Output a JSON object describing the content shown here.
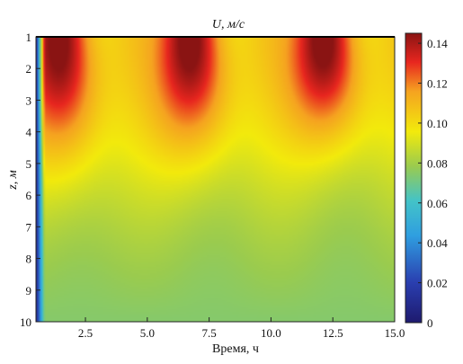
{
  "chart_data": {
    "type": "heatmap",
    "title": "U, м/с",
    "xlabel": "Время, ч",
    "ylabel": "z, м",
    "xlim": [
      0.5,
      15.0
    ],
    "ylim": [
      1,
      10
    ],
    "y_inverted": true,
    "x_ticks": [
      "2.5",
      "5.0",
      "7.5",
      "10.0",
      "12.5",
      "15.0"
    ],
    "y_ticks": [
      "1",
      "2",
      "3",
      "4",
      "5",
      "6",
      "7",
      "8",
      "9",
      "10"
    ],
    "colorbar": {
      "range": [
        0,
        0.145
      ],
      "ticks": [
        "0",
        "0.02",
        "0.04",
        "0.06",
        "0.08",
        "0.10",
        "0.12",
        "0.14"
      ],
      "colormap": "jet"
    },
    "features": {
      "peak_times_h": [
        1.5,
        6.8,
        12.2
      ],
      "peak_value": 0.145,
      "near_surface_minimum_z_m": [
        1,
        10
      ],
      "near_surface_minimum_time_h": 0.5
    }
  }
}
